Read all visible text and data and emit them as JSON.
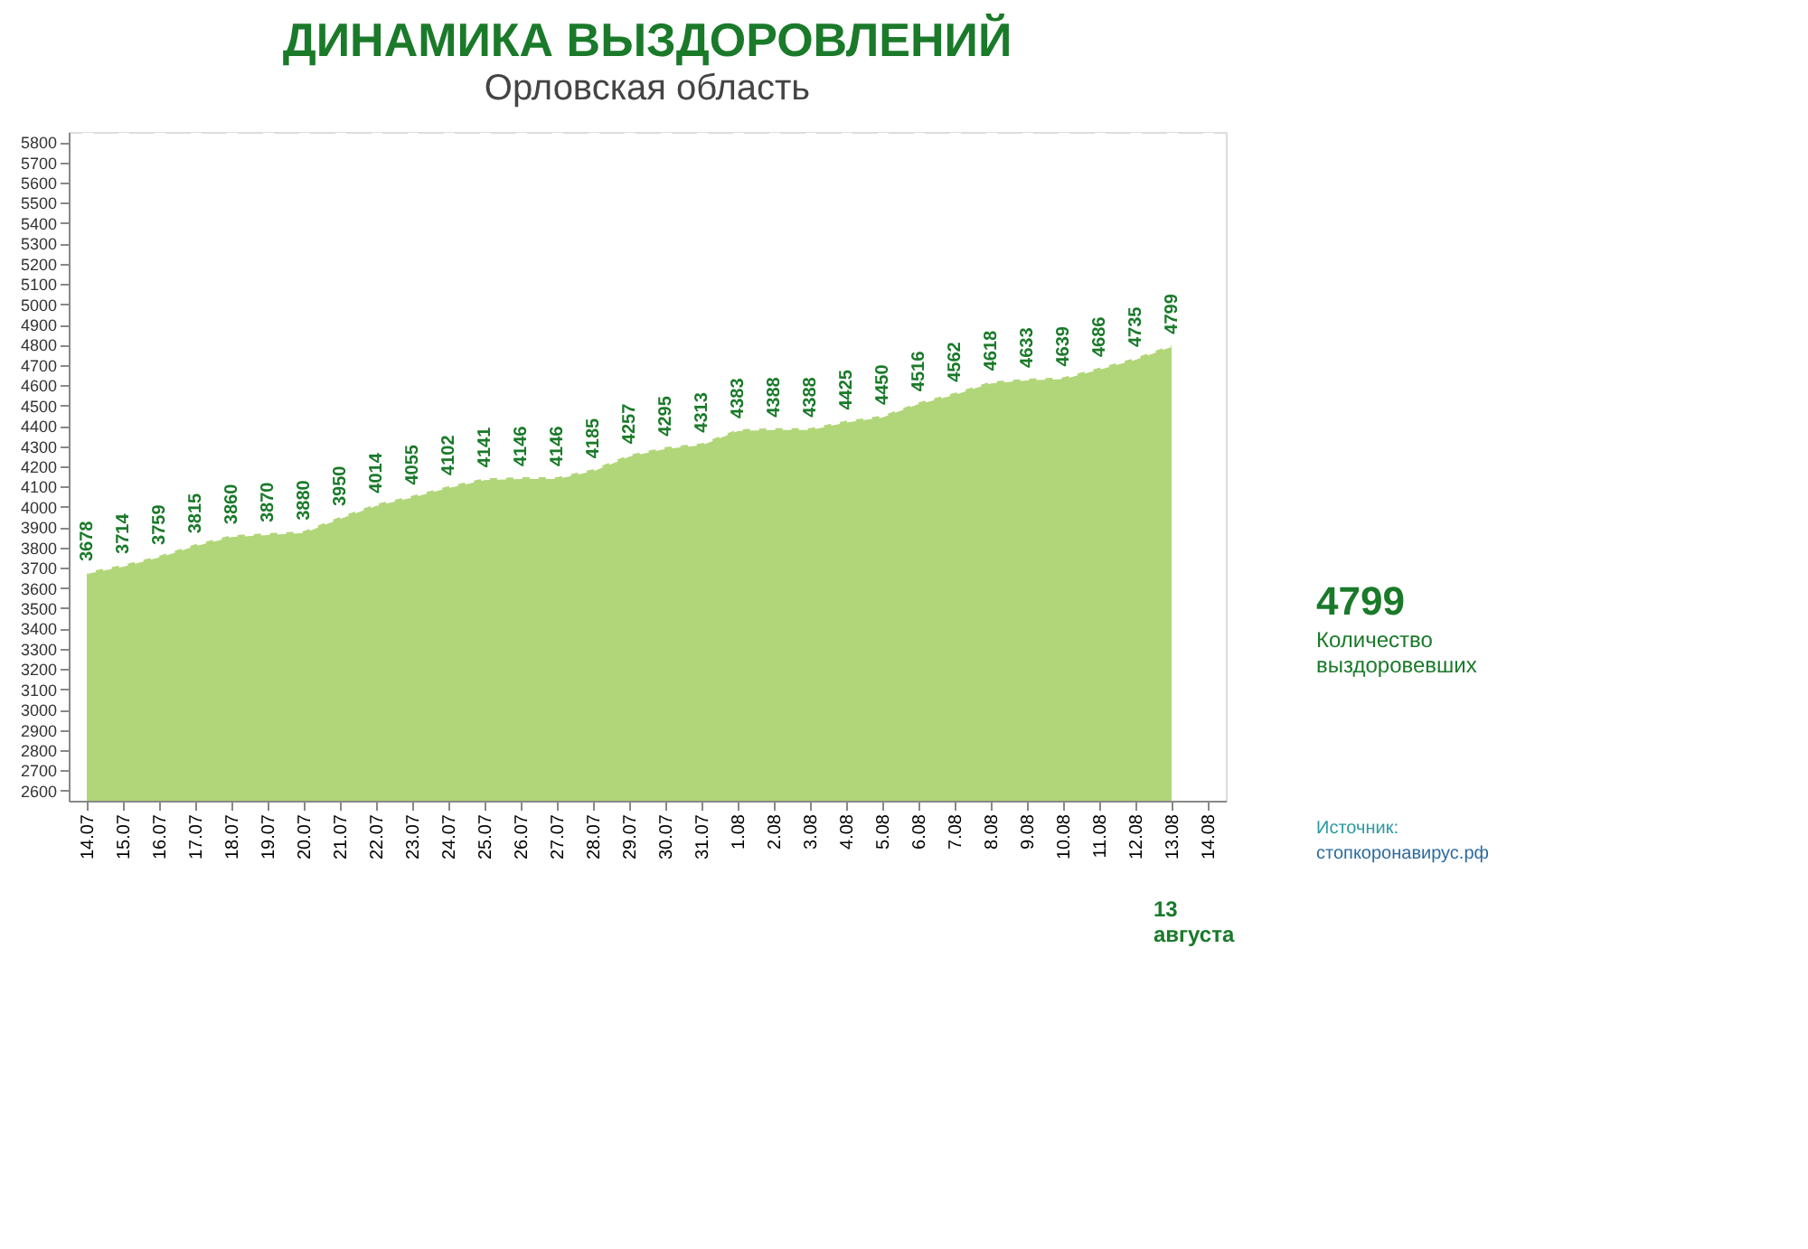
{
  "chart_data": {
    "type": "area",
    "title": "ДИНАМИКА ВЫЗДОРОВЛЕНИЙ",
    "subtitle": "Орловская область",
    "categories": [
      "14.07",
      "15.07",
      "16.07",
      "17.07",
      "18.07",
      "19.07",
      "20.07",
      "21.07",
      "22.07",
      "23.07",
      "24.07",
      "25.07",
      "26.07",
      "27.07",
      "28.07",
      "29.07",
      "30.07",
      "31.07",
      "1.08",
      "2.08",
      "3.08",
      "4.08",
      "5.08",
      "6.08",
      "7.08",
      "8.08",
      "9.08",
      "10.08",
      "11.08",
      "12.08",
      "13.08",
      "14.08"
    ],
    "series": [
      {
        "color": "#a9d16a",
        "values": [
          3678,
          3714,
          3759,
          3815,
          3860,
          3870,
          3880,
          3950,
          4014,
          4055,
          4102,
          4141,
          4146,
          4146,
          4185,
          4257,
          4295,
          4313,
          4383,
          4388,
          4388,
          4425,
          4450,
          4516,
          4562,
          4618,
          4633,
          4639,
          4686,
          4735,
          4799,
          null
        ]
      }
    ],
    "ylim": [
      2550,
      5850
    ],
    "yticks": [
      2600,
      2700,
      2800,
      2900,
      3000,
      3100,
      3200,
      3300,
      3400,
      3500,
      3600,
      3700,
      3800,
      3900,
      4000,
      4100,
      4200,
      4300,
      4400,
      4500,
      4600,
      4700,
      4800,
      4900,
      5000,
      5100,
      5200,
      5300,
      5400,
      5500,
      5600,
      5700,
      5800
    ],
    "grid": "x",
    "line_style": "dashed",
    "data_labels": true,
    "annotations": [
      "4799",
      "Количество выздоровевших",
      "Источник:",
      "стопкоронавирус.рф",
      "13 августа"
    ]
  }
}
